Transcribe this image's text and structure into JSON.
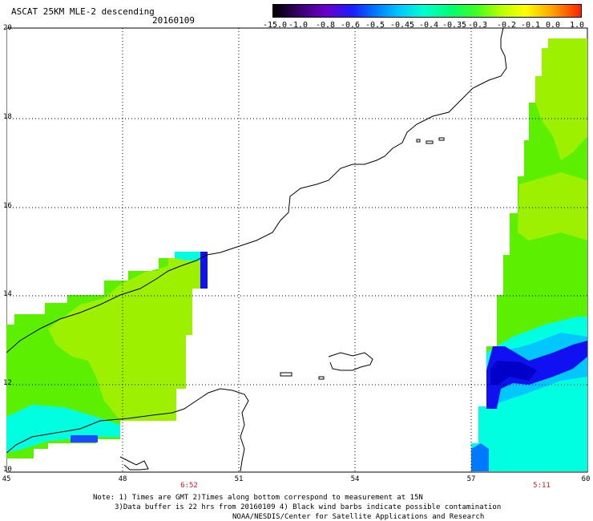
{
  "header": {
    "title": "ASCAT 25KM MLE-2 descending",
    "date": "20160109"
  },
  "colorbar": {
    "labels": [
      "-15.0",
      "-1.0",
      "-0.8",
      "-0.6",
      "-0.5",
      "-0.45",
      "-0.4",
      "-0.35",
      "-0.3",
      "-0.2",
      "-0.1",
      "0.0",
      "1.0"
    ]
  },
  "axes": {
    "lat_labels": [
      "20",
      "18",
      "16",
      "14",
      "12",
      "10"
    ],
    "lon_labels": [
      "45",
      "48",
      "51",
      "54",
      "57",
      "60"
    ],
    "time_labels": [
      "6:52",
      "5:11"
    ]
  },
  "notes": {
    "line1": "Note: 1) Times are GMT 2)Times along bottom correspond to measurement at 15N",
    "line2": "3)Data buffer is 22 hrs from 20160109 4) Black wind barbs indicate possible contamination",
    "line3": "NOAA/NESDIS/Center for Satellite Applications and Research"
  },
  "map_colors": {
    "green": "#5cf000",
    "yellow_green": "#9cf000",
    "cyan": "#00ffe0",
    "blue": "#1010f0",
    "light_blue": "#00c8ff"
  }
}
